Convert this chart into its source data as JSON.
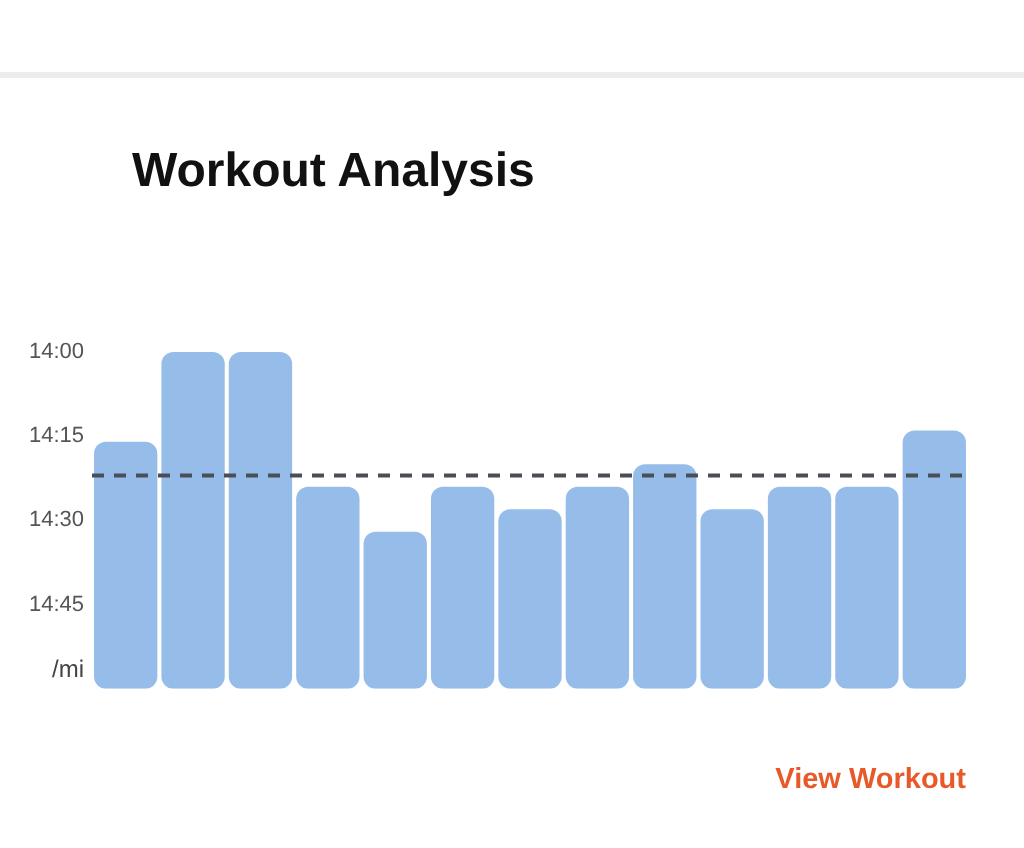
{
  "chart_data": {
    "type": "bar",
    "title": "Workout Analysis",
    "ylabel": "/mi",
    "categories": [
      null,
      null,
      null,
      null,
      null,
      null,
      null,
      null,
      null,
      null,
      null,
      null,
      null
    ],
    "base": [
      900,
      900,
      900,
      900,
      900,
      900,
      900,
      900,
      900,
      900,
      900,
      900,
      900
    ],
    "values": [
      -44,
      -60,
      -60,
      -36,
      -28,
      -36,
      -32,
      -36,
      -40,
      -32,
      -36,
      -36,
      -46
    ],
    "color": "#96bdea",
    "ylim": [
      900,
      840
    ],
    "yticks": [
      {
        "value": 840,
        "label": "14:00"
      },
      {
        "value": 855,
        "label": "14:15"
      },
      {
        "value": 870,
        "label": "14:30"
      },
      {
        "value": 885,
        "label": "14:45"
      }
    ],
    "ref_lines": [
      {
        "axis": "y",
        "value": 862,
        "color": "#4a4f57",
        "line_style": "dashed"
      }
    ],
    "grid": false,
    "legend": false,
    "tick_labels": "y",
    "annotations": [
      "View Workout"
    ]
  }
}
